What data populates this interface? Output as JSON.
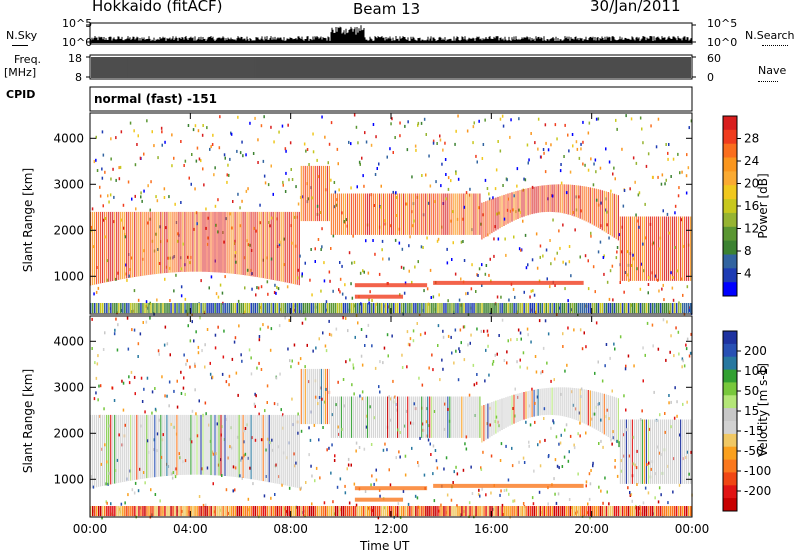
{
  "header": {
    "station": "Hokkaido (fitACF)",
    "beam": "Beam 13",
    "date": "30/Jan/2011"
  },
  "strip_labels": {
    "nsky": "N.Sky",
    "nsearch": "N.Search",
    "freq": "Freq.",
    "freq_unit": "[MHz]",
    "nave": "Nave",
    "cpid": "CPID",
    "nsky_ticks": [
      "10^5",
      "10^0"
    ],
    "nsearch_ticks": [
      "10^5",
      "10^0"
    ],
    "freq_ticks": [
      "18",
      "8"
    ],
    "nave_ticks": [
      "60",
      "0"
    ],
    "cpid_text": "normal (fast) -151"
  },
  "chart_data": [
    {
      "type": "heatmap",
      "name": "power",
      "ylabel": "Slant Range [km]",
      "xlabel": "Time UT",
      "yticks": [
        1000,
        2000,
        3000,
        4000
      ],
      "ylim": [
        180,
        4550
      ],
      "xticks": [
        "00:00",
        "04:00",
        "08:00",
        "12:00",
        "16:00",
        "20:00",
        "00:00"
      ],
      "colorbar": {
        "label": "Power [dB]",
        "ticks": [
          "28",
          "24",
          "20",
          "16",
          "12",
          "8",
          "4"
        ],
        "colors": [
          "#d81e1e",
          "#f03c1e",
          "#fa6e1e",
          "#fa961e",
          "#faaa32",
          "#f0c81e",
          "#c8c81e",
          "#96b432",
          "#5a9632",
          "#3c8232",
          "#3264a0",
          "#1e3cb4",
          "#0000ff"
        ]
      }
    },
    {
      "type": "heatmap",
      "name": "velocity",
      "ylabel": "Slant Range [km]",
      "xlabel": "Time UT",
      "yticks": [
        1000,
        2000,
        3000,
        4000
      ],
      "ylim": [
        180,
        4550
      ],
      "xticks": [
        "00:00",
        "04:00",
        "08:00",
        "12:00",
        "16:00",
        "20:00",
        "00:00"
      ],
      "colorbar": {
        "label": "Velocity [m s-1]",
        "ticks": [
          "200",
          "100",
          "50",
          "15",
          "-15",
          "-50",
          "-100",
          "-200"
        ],
        "colors": [
          "#1e32a0",
          "#2850b4",
          "#2878a0",
          "#32a032",
          "#78c83c",
          "#b4e678",
          "#c8c8c8",
          "#d2d2d2",
          "#f0c864",
          "#faa01e",
          "#fa781e",
          "#f04614",
          "#e11414",
          "#c80000"
        ]
      }
    }
  ]
}
